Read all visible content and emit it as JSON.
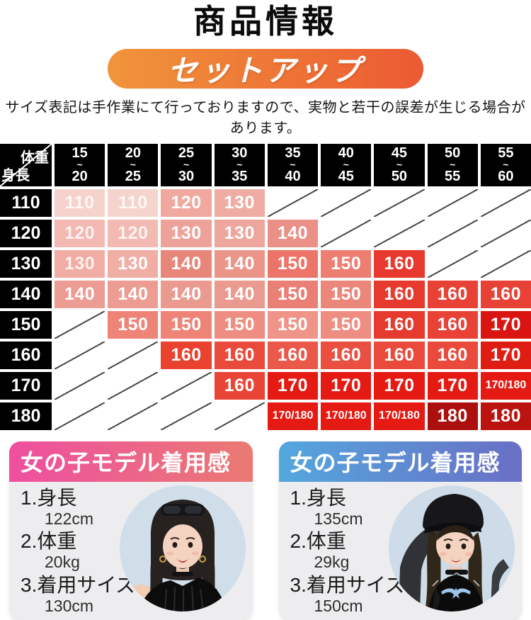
{
  "header": {
    "title": "商品情報",
    "banner_label": "セットアップ",
    "banner_colors": {
      "left": "#f0953b",
      "right": "#ec5a33"
    },
    "notice": "サイズ表記は手作業にて行っておりますので、実物と若干の誤差が生じる場合があります。"
  },
  "size_table": {
    "corner": {
      "top_label": "体重",
      "bottom_label": "身長"
    },
    "range_separator": "~",
    "weight_columns": [
      {
        "from": "15",
        "to": "20"
      },
      {
        "from": "20",
        "to": "25"
      },
      {
        "from": "25",
        "to": "30"
      },
      {
        "from": "30",
        "to": "35"
      },
      {
        "from": "35",
        "to": "40"
      },
      {
        "from": "40",
        "to": "45"
      },
      {
        "from": "45",
        "to": "50"
      },
      {
        "from": "50",
        "to": "55"
      },
      {
        "from": "55",
        "to": "60"
      }
    ],
    "rows": [
      {
        "height": "110",
        "cells": [
          {
            "v": "110",
            "c": "#f5d2cc",
            "faint": true
          },
          {
            "v": "110",
            "c": "#f5d4ce",
            "faint": true
          },
          {
            "v": "120",
            "c": "#f0a89f"
          },
          {
            "v": "130",
            "c": "#efaca3"
          },
          null,
          null,
          null,
          null,
          null
        ]
      },
      {
        "height": "120",
        "cells": [
          {
            "v": "120",
            "c": "#f2b8b1",
            "faint": true
          },
          {
            "v": "120",
            "c": "#f2bab3",
            "faint": true
          },
          {
            "v": "130",
            "c": "#eea39a"
          },
          {
            "v": "130",
            "c": "#eea59c"
          },
          {
            "v": "140",
            "c": "#ea9086"
          },
          null,
          null,
          null,
          null
        ]
      },
      {
        "height": "130",
        "cells": [
          {
            "v": "130",
            "c": "#f1aca3",
            "faint": true
          },
          {
            "v": "130",
            "c": "#f1aea5"
          },
          {
            "v": "140",
            "c": "#e8867a"
          },
          {
            "v": "140",
            "c": "#eb9589"
          },
          {
            "v": "150",
            "c": "#ed7468"
          },
          {
            "v": "150",
            "c": "#ee7d72"
          },
          {
            "v": "160",
            "c": "#e7392d"
          },
          null,
          null
        ]
      },
      {
        "height": "140",
        "cells": [
          {
            "v": "140",
            "c": "#ec9c92"
          },
          {
            "v": "140",
            "c": "#ec9c92"
          },
          {
            "v": "140",
            "c": "#eb9a90"
          },
          {
            "v": "140",
            "c": "#eb9a90"
          },
          {
            "v": "150",
            "c": "#ea8075"
          },
          {
            "v": "150",
            "c": "#eb867b"
          },
          {
            "v": "160",
            "c": "#e73a2e"
          },
          {
            "v": "160",
            "c": "#e84236"
          },
          {
            "v": "160",
            "c": "#e84236"
          }
        ]
      },
      {
        "height": "150",
        "cells": [
          null,
          {
            "v": "150",
            "c": "#ee8478"
          },
          {
            "v": "150",
            "c": "#ee8478"
          },
          {
            "v": "150",
            "c": "#ee8d82"
          },
          {
            "v": "150",
            "c": "#ef9488"
          },
          {
            "v": "150",
            "c": "#ee8d82"
          },
          {
            "v": "160",
            "c": "#e73a2e"
          },
          {
            "v": "160",
            "c": "#e84236"
          },
          {
            "v": "170",
            "c": "#da1511"
          }
        ]
      },
      {
        "height": "160",
        "cells": [
          null,
          null,
          {
            "v": "160",
            "c": "#e9422f"
          },
          {
            "v": "160",
            "c": "#ea4a3b"
          },
          {
            "v": "160",
            "c": "#ea584a"
          },
          {
            "v": "160",
            "c": "#ea4f41"
          },
          {
            "v": "160",
            "c": "#ea4a3b"
          },
          {
            "v": "160",
            "c": "#ea4a3b"
          },
          {
            "v": "170",
            "c": "#e01d13"
          }
        ]
      },
      {
        "height": "170",
        "cells": [
          null,
          null,
          null,
          {
            "v": "160",
            "c": "#e94536"
          },
          {
            "v": "170",
            "c": "#e51a12"
          },
          {
            "v": "170",
            "c": "#e51a12"
          },
          {
            "v": "170",
            "c": "#e51a12"
          },
          {
            "v": "170",
            "c": "#e51a12"
          },
          {
            "v": "170/180",
            "c": "#e51a12"
          }
        ]
      },
      {
        "height": "180",
        "cells": [
          null,
          null,
          null,
          null,
          {
            "v": "170/180",
            "c": "#e51a12"
          },
          {
            "v": "170/180",
            "c": "#e51a12"
          },
          {
            "v": "170/180",
            "c": "#e51a12"
          },
          {
            "v": "180",
            "c": "#ab100e"
          },
          {
            "v": "180",
            "c": "#bb1310"
          }
        ]
      }
    ]
  },
  "model_cards": [
    {
      "heading": "女の子モデル着用感",
      "header_gradient": [
        "#ee4fa0",
        "#ea7a72"
      ],
      "photo_bg": "#cfdee9",
      "specs": [
        {
          "label": "1.身長",
          "value": "122cm"
        },
        {
          "label": "2.体重",
          "value": "20kg"
        },
        {
          "label": "3.着用サイズ",
          "value": "130cm"
        }
      ]
    },
    {
      "heading": "女の子モデル着用感",
      "header_gradient": [
        "#54a7de",
        "#6a6fc5"
      ],
      "photo_bg": "#cddce8",
      "specs": [
        {
          "label": "1.身長",
          "value": "135cm"
        },
        {
          "label": "2.体重",
          "value": "29kg"
        },
        {
          "label": "3.着用サイズ",
          "value": "150cm"
        }
      ]
    }
  ]
}
